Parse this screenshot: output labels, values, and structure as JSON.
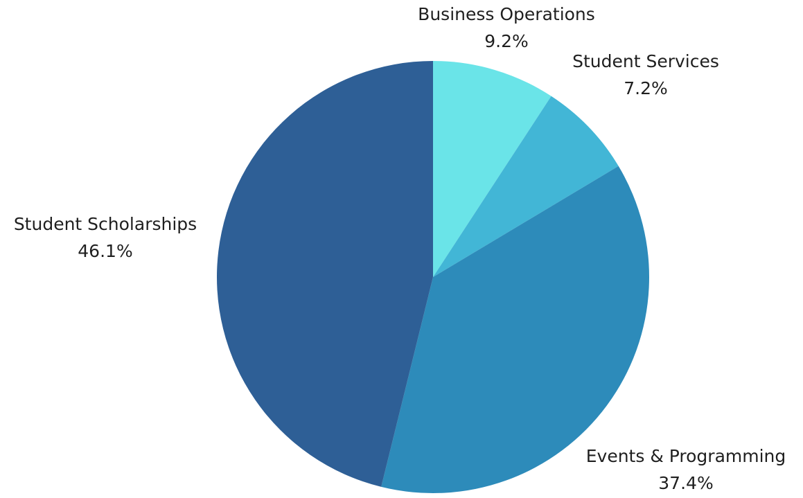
{
  "chart_data": {
    "type": "pie",
    "categories": [
      "Business Operations",
      "Student Services",
      "Events & Programming",
      "Student Scholarships"
    ],
    "values": [
      9.2,
      7.2,
      37.4,
      46.1
    ],
    "value_labels": [
      "9.2%",
      "7.2%",
      "37.4%",
      "46.1%"
    ],
    "colors": [
      "#6ae4e8",
      "#42b6d6",
      "#2d8bba",
      "#2e5f96"
    ]
  }
}
